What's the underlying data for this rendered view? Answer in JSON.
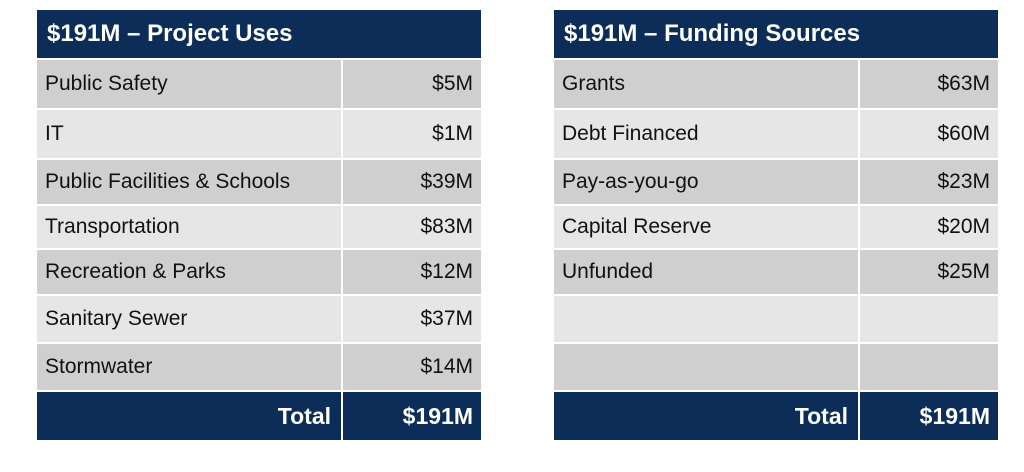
{
  "uses": {
    "title": "$191M – Project Uses",
    "rows": [
      {
        "label": "Public Safety",
        "value": "$5M"
      },
      {
        "label": "IT",
        "value": "$1M"
      },
      {
        "label": "Public Facilities & Schools",
        "value": "$39M"
      },
      {
        "label": "Transportation",
        "value": "$83M"
      },
      {
        "label": "Recreation & Parks",
        "value": "$12M"
      },
      {
        "label": "Sanitary Sewer",
        "value": "$37M"
      },
      {
        "label": "Stormwater",
        "value": "$14M"
      }
    ],
    "total_label": "Total",
    "total_value": "$191M"
  },
  "sources": {
    "title": "$191M – Funding Sources",
    "rows": [
      {
        "label": "Grants",
        "value": "$63M"
      },
      {
        "label": "Debt Financed",
        "value": "$60M"
      },
      {
        "label": "Pay-as-you-go",
        "value": "$23M"
      },
      {
        "label": "Capital Reserve",
        "value": "$20M"
      },
      {
        "label": "Unfunded",
        "value": "$25M"
      },
      {
        "label": "",
        "value": ""
      },
      {
        "label": "",
        "value": ""
      }
    ],
    "total_label": "Total",
    "total_value": "$191M"
  },
  "colors": {
    "header_bg": "#0c2d57",
    "row_dark": "#cfcfcf",
    "row_light": "#e6e6e6"
  }
}
